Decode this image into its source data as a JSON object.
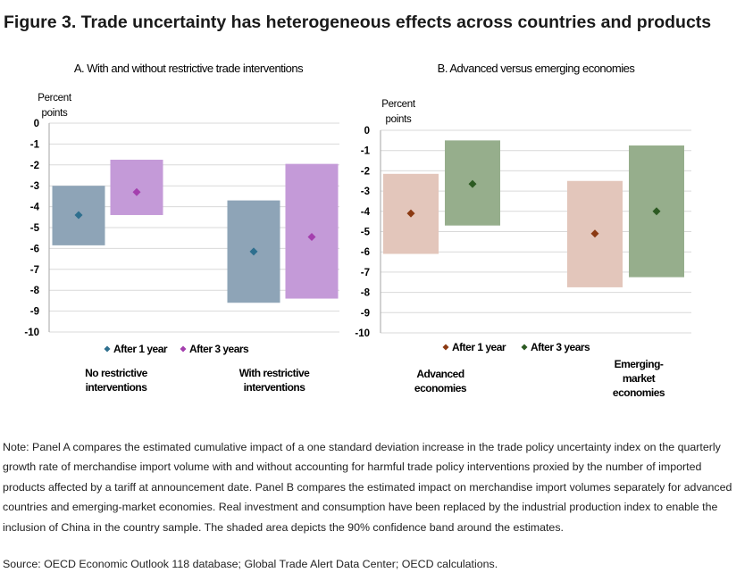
{
  "figure_title": "Figure 3. Trade uncertainty has heterogeneous effects across countries and products",
  "note": "Note: Panel A compares the estimated cumulative impact of a one standard deviation increase in the trade policy uncertainty index on the quarterly growth rate of merchandise import volume with and without accounting for harmful trade policy interventions proxied by the number of imported products affected by a tariff at announcement date. Panel B compares the estimated impact on merchandise import volumes separately for advanced countries and emerging-market economies. Real investment and consumption have been replaced by the industrial production index to enable the inclusion of China in the country sample. The shaded area depicts the 90% confidence band around the estimates.",
  "source": "Source: OECD Economic Outlook 118 database; Global Trade Alert Data Center; OECD calculations.",
  "chart_data": [
    {
      "type": "bar",
      "title": "A. With and without restrictive trade interventions",
      "ylabel_lines": [
        "Percent",
        "points"
      ],
      "ylim": [
        -10,
        0
      ],
      "yticks": [
        0,
        -1,
        -2,
        -3,
        -4,
        -5,
        -6,
        -7,
        -8,
        -9,
        -10
      ],
      "grid": true,
      "legend_position": "bottom",
      "categories": [
        {
          "label_lines": [
            "No restrictive",
            "interventions"
          ]
        },
        {
          "label_lines": [
            "With restrictive",
            "interventions"
          ]
        }
      ],
      "series": [
        {
          "name": "After 1 year",
          "marker_color": "#2e6f8e",
          "band_color": "#8ea4b7",
          "estimates": [
            -4.4,
            -6.15
          ],
          "band_upper": [
            -3.0,
            -3.7
          ],
          "band_lower": [
            -5.85,
            -8.6
          ]
        },
        {
          "name": "After 3 years",
          "marker_color": "#a43fae",
          "band_color": "#c49ad8",
          "estimates": [
            -3.3,
            -5.45
          ],
          "band_upper": [
            -1.75,
            -1.95
          ],
          "band_lower": [
            -4.4,
            -8.4
          ]
        }
      ]
    },
    {
      "type": "bar",
      "title": "B. Advanced versus emerging economies",
      "ylabel_lines": [
        "Percent",
        "points"
      ],
      "ylim": [
        -10,
        0
      ],
      "yticks": [
        0,
        -1,
        -2,
        -3,
        -4,
        -5,
        -6,
        -7,
        -8,
        -9,
        -10
      ],
      "grid": true,
      "legend_position": "bottom",
      "categories": [
        {
          "label_lines": [
            "Advanced",
            "economies"
          ]
        },
        {
          "label_lines": [
            "Emerging-",
            "market",
            "economies"
          ]
        }
      ],
      "series": [
        {
          "name": "After 1 year",
          "marker_color": "#8b3a13",
          "band_color": "#e3c6bb",
          "estimates": [
            -4.1,
            -5.1
          ],
          "band_upper": [
            -2.15,
            -2.5
          ],
          "band_lower": [
            -6.1,
            -7.75
          ]
        },
        {
          "name": "After 3 years",
          "marker_color": "#2c5a22",
          "band_color": "#96ae8c",
          "estimates": [
            -2.65,
            -4.0
          ],
          "band_upper": [
            -0.5,
            -0.75
          ],
          "band_lower": [
            -4.7,
            -7.25
          ]
        }
      ]
    }
  ]
}
